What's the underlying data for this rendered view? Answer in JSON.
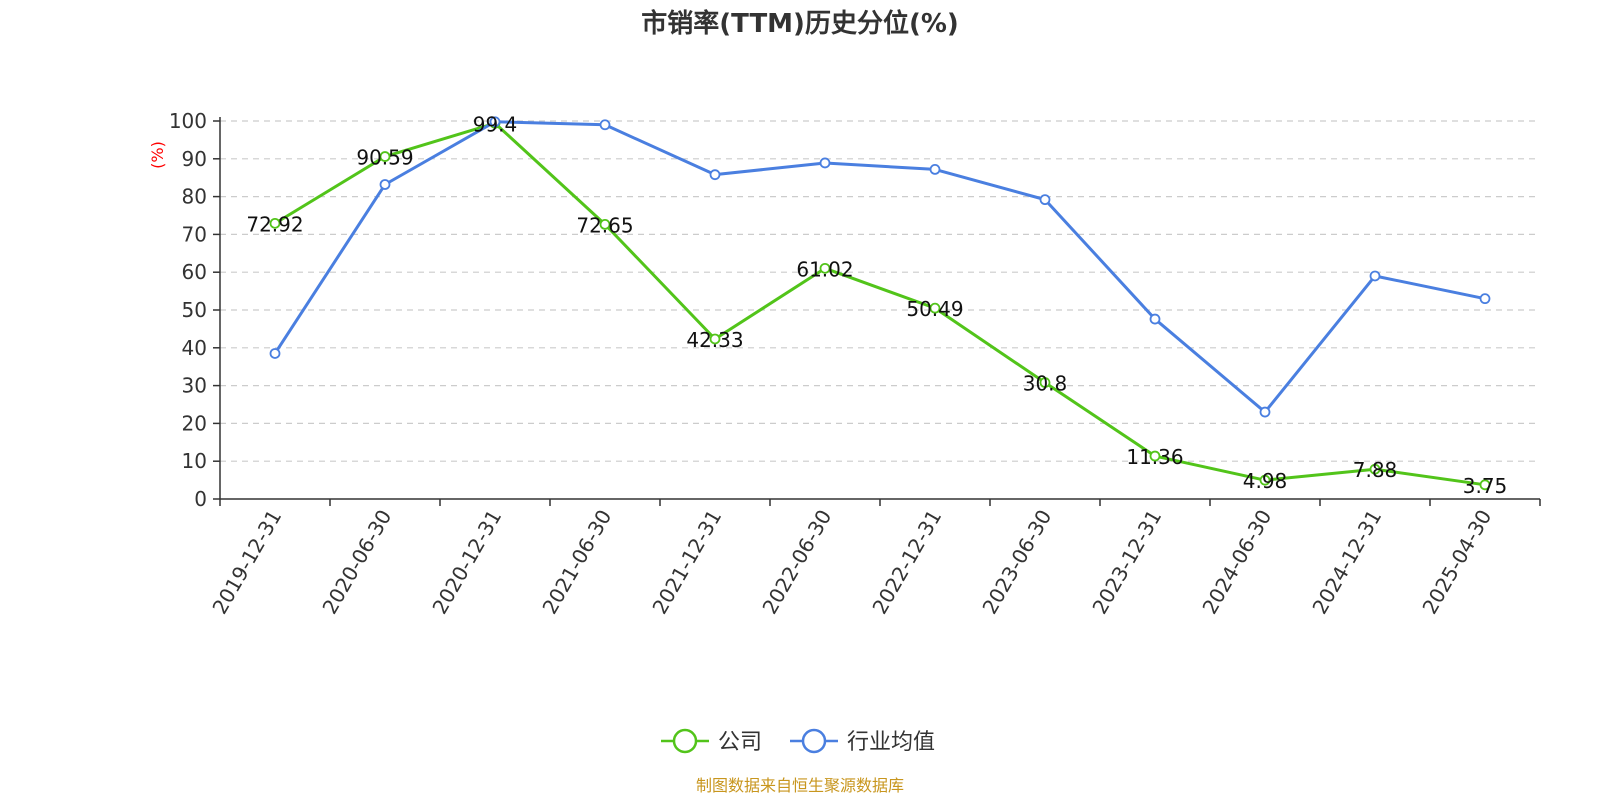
{
  "chart_data": {
    "type": "line",
    "title": "市销率(TTM)历史分位(%)",
    "ylabel": "(%)",
    "xlabel": "",
    "ylim": [
      0,
      100
    ],
    "yticks": [
      0,
      10,
      20,
      30,
      40,
      50,
      60,
      70,
      80,
      90,
      100
    ],
    "grid": true,
    "legend_position": "bottom-center",
    "categories": [
      "2019-12-31",
      "2020-06-30",
      "2020-12-31",
      "2021-06-30",
      "2021-12-31",
      "2022-06-30",
      "2022-12-31",
      "2023-06-30",
      "2023-12-31",
      "2024-06-30",
      "2024-12-31",
      "2025-04-30"
    ],
    "series": [
      {
        "name": "公司",
        "color": "#52c41a",
        "values": [
          72.92,
          90.59,
          99.4,
          72.65,
          42.33,
          61.02,
          50.49,
          30.8,
          11.36,
          4.98,
          7.88,
          3.75
        ],
        "labels": [
          "72.92",
          "90.59",
          "99.4",
          "72.65",
          "42.33",
          "61.02",
          "50.49",
          "30.8",
          "11.36",
          "4.98",
          "7.88",
          "3.75"
        ]
      },
      {
        "name": "行业均值",
        "color": "#4a7fe0",
        "values": [
          38.5,
          83.2,
          99.8,
          99.0,
          85.8,
          88.9,
          87.2,
          79.2,
          47.6,
          23.0,
          59.0,
          53.0
        ]
      }
    ],
    "source": "制图数据来自恒生聚源数据库"
  }
}
